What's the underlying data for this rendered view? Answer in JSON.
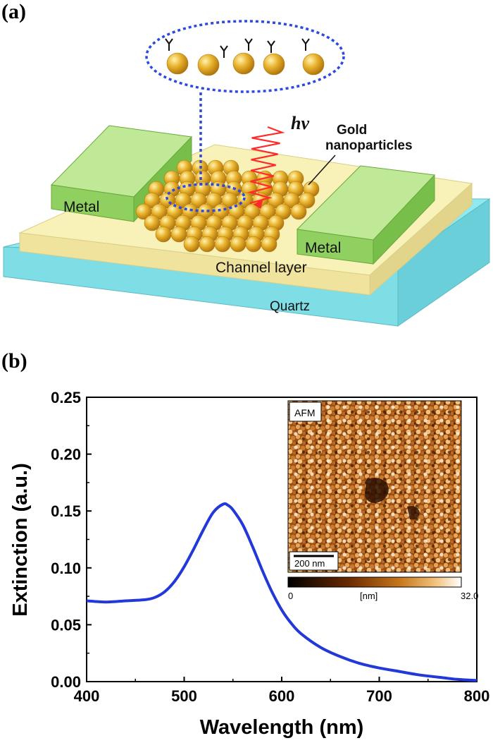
{
  "figure": {
    "panel_a_label": "(a)",
    "panel_b_label": "(b)"
  },
  "schematic": {
    "metal_left": "Metal",
    "metal_right": "Metal",
    "channel_layer": "Channel layer",
    "substrate": "Quartz",
    "photon": "hν",
    "gold_line1": "Gold",
    "gold_line2": "nanoparticles",
    "colors": {
      "quartz": "#8fe9ef",
      "channel": "#f8f1b8",
      "metal": "#8fd060",
      "gold": "#e2a824",
      "light": "#ff2a2a",
      "dashed": "#2c49e0"
    }
  },
  "inset": {
    "label": "AFM",
    "scalebar": "200 nm",
    "colorbar_min": "0",
    "colorbar_unit": "[nm]",
    "colorbar_max": "32.0"
  },
  "chart_data": {
    "type": "line",
    "xlabel": "Wavelength (nm)",
    "ylabel": "Extinction (a.u.)",
    "xlim": [
      400,
      800
    ],
    "ylim": [
      0,
      0.25
    ],
    "xticks": [
      "400",
      "500",
      "600",
      "700",
      "800"
    ],
    "yticks": [
      "0.00",
      "0.05",
      "0.10",
      "0.15",
      "0.20",
      "0.25"
    ],
    "grid": false,
    "line_color": "#2238d8",
    "series": [
      {
        "x": [
          400,
          420,
          440,
          460,
          470,
          480,
          490,
          500,
          510,
          520,
          530,
          540,
          545,
          550,
          560,
          570,
          580,
          590,
          600,
          610,
          620,
          640,
          660,
          680,
          700,
          720,
          740,
          760,
          780,
          800
        ],
        "values": [
          0.071,
          0.07,
          0.071,
          0.072,
          0.074,
          0.079,
          0.088,
          0.101,
          0.117,
          0.134,
          0.149,
          0.156,
          0.155,
          0.151,
          0.138,
          0.119,
          0.098,
          0.079,
          0.063,
          0.051,
          0.042,
          0.03,
          0.022,
          0.016,
          0.012,
          0.009,
          0.006,
          0.004,
          0.002,
          0.001
        ]
      }
    ]
  }
}
